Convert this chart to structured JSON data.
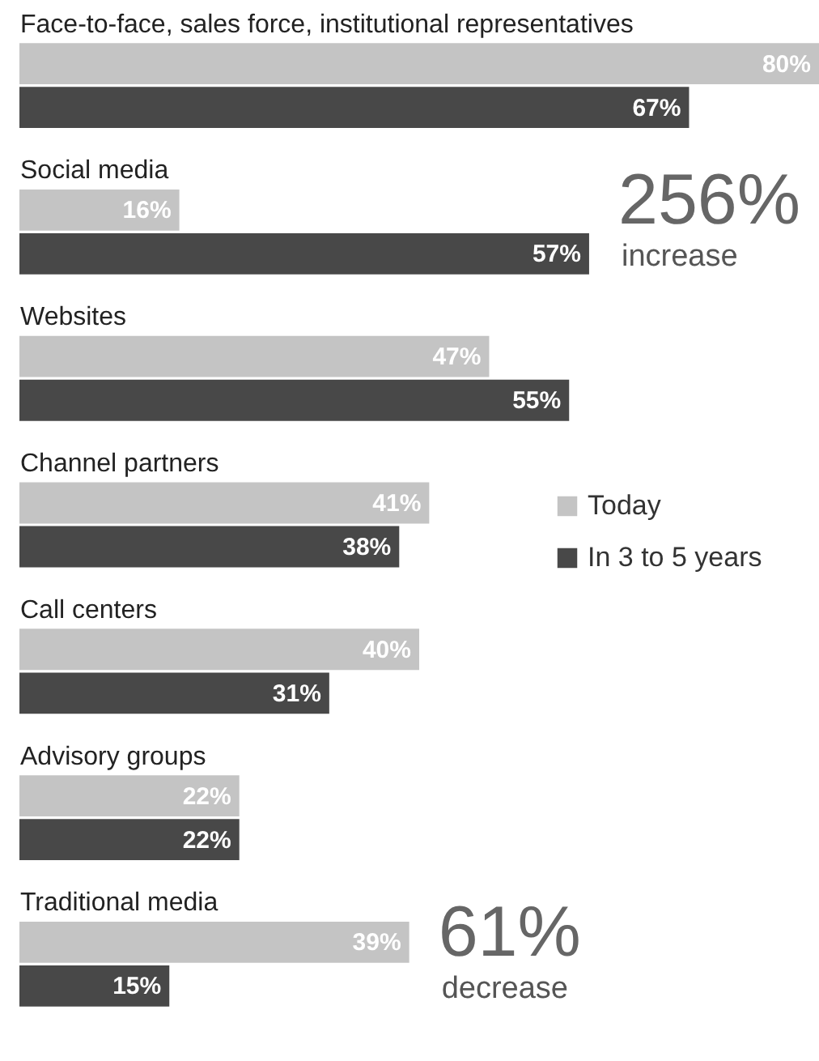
{
  "chart_data": {
    "type": "bar",
    "orientation": "horizontal",
    "categories": [
      "Face-to-face, sales force, institutional representatives",
      "Social media",
      "Websites",
      "Channel partners",
      "Call centers",
      "Advisory groups",
      "Traditional media"
    ],
    "series": [
      {
        "name": "Today",
        "color": "#c4c4c4",
        "values": [
          80,
          16,
          47,
          41,
          40,
          22,
          39
        ],
        "value_labels": [
          "80%",
          "16%",
          "47%",
          "41%",
          "40%",
          "22%",
          "39%"
        ]
      },
      {
        "name": "In 3 to 5 years",
        "color": "#484848",
        "values": [
          67,
          57,
          55,
          38,
          31,
          22,
          15
        ],
        "value_labels": [
          "67%",
          "57%",
          "55%",
          "38%",
          "31%",
          "22%",
          "15%"
        ]
      }
    ],
    "legend": "right",
    "grid": false,
    "annotations": [
      "256%",
      "increase",
      "61%",
      "decrease"
    ]
  }
}
